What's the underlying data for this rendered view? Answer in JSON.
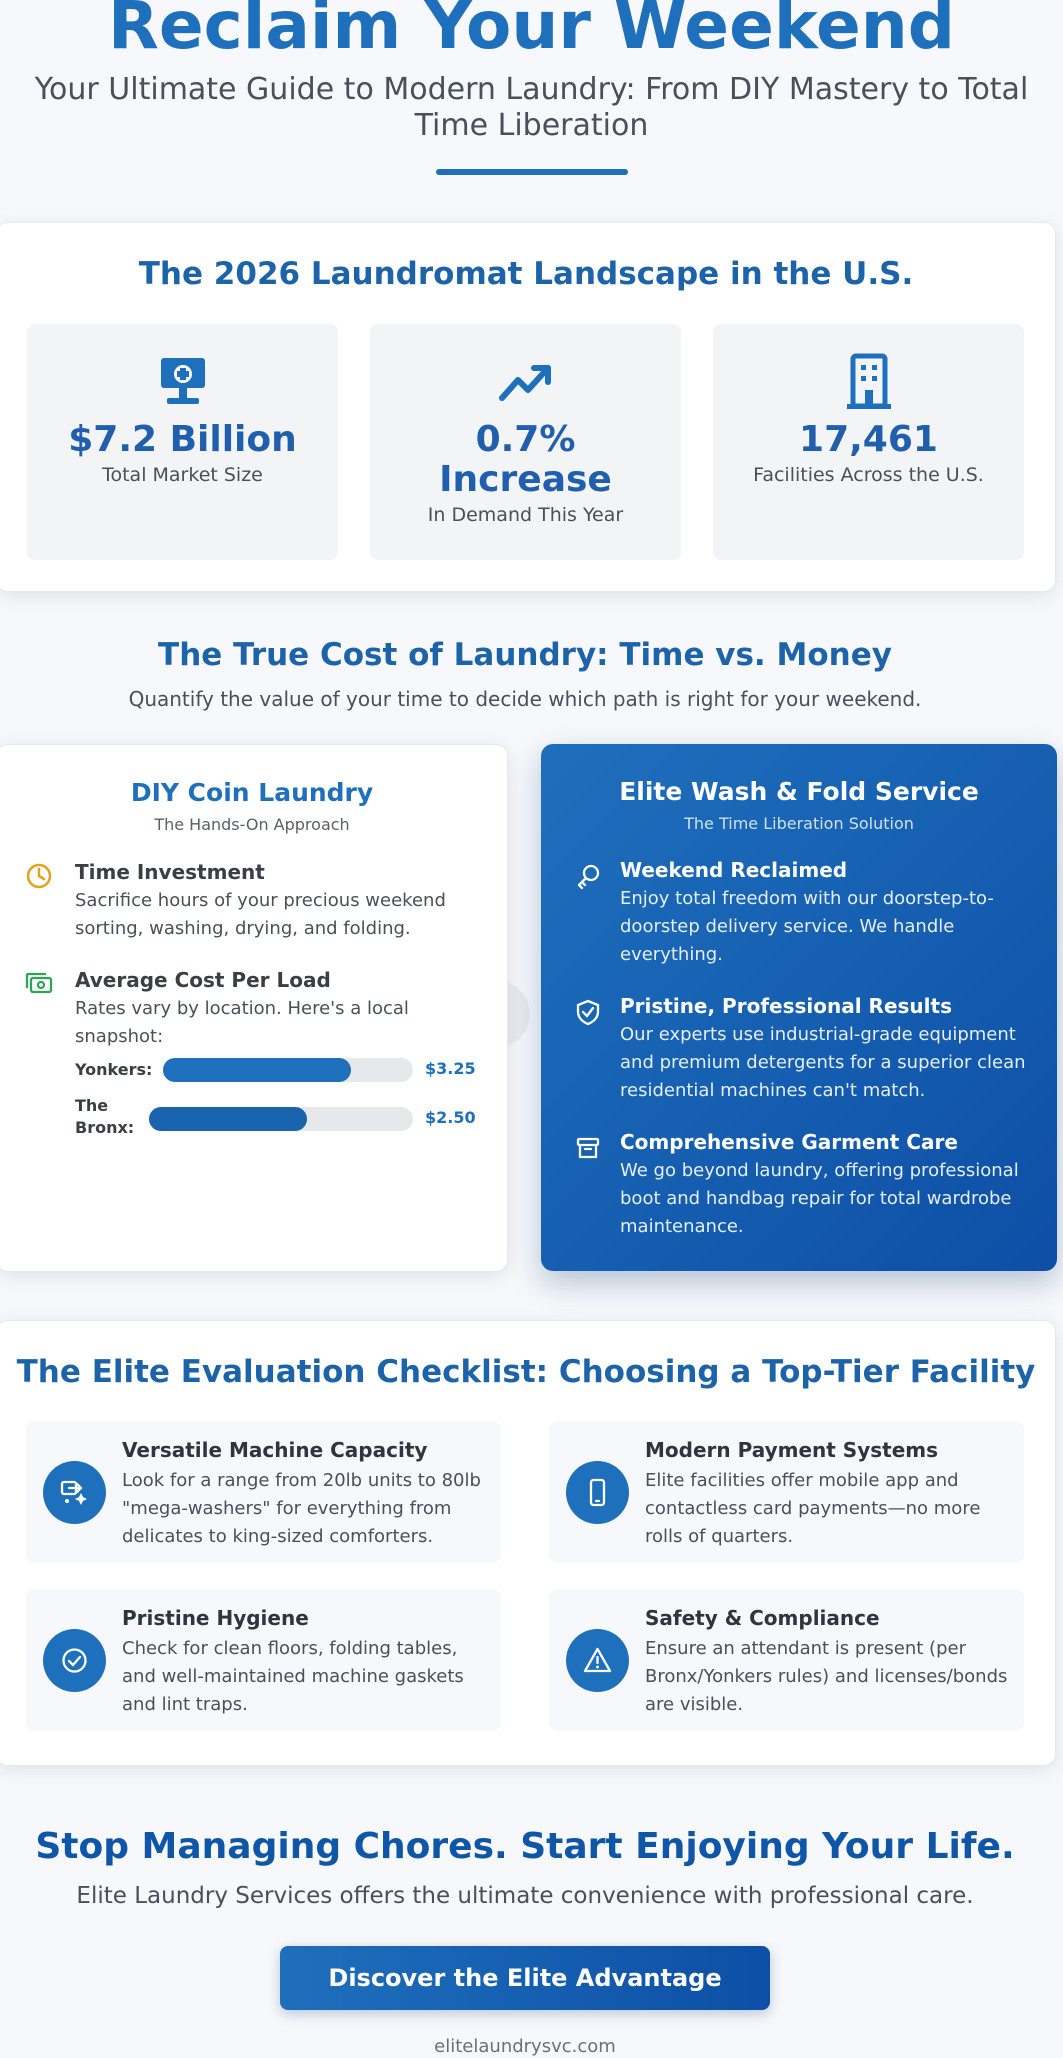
{
  "hero": {
    "title": "Reclaim Your Weekend",
    "subtitle": "Your Ultimate Guide to Modern Laundry: From DIY Mastery to Total Time Liberation"
  },
  "landscape": {
    "title": "The 2026 Laundromat Landscape in the U.S.",
    "stats": [
      {
        "value": "$7.2 Billion",
        "label": "Total Market Size",
        "icon": "market-icon"
      },
      {
        "value": "0.7% Increase",
        "label": "In Demand This Year",
        "icon": "trend-up-icon"
      },
      {
        "value": "17,461",
        "label": "Facilities Across the U.S.",
        "icon": "building-icon"
      }
    ]
  },
  "cost": {
    "title": "The True Cost of Laundry: Time vs. Money",
    "subtitle": "Quantify the value of your time to decide which path is right for your weekend."
  },
  "diy": {
    "title": "DIY Coin Laundry",
    "tagline": "The Hands-On Approach",
    "features": [
      {
        "title": "Time Investment",
        "desc": "Sacrifice hours of your precious weekend sorting, washing, drying, and folding.",
        "icon": "clock-icon",
        "color": "#e3a21a"
      },
      {
        "title": "Average Cost Per Load",
        "desc": "Rates vary by location. Here's a local snapshot:",
        "icon": "cash-icon",
        "color": "#2fa35a"
      }
    ],
    "prices": [
      {
        "label": "Yonkers:",
        "value": "$3.25",
        "fraction": 0.75
      },
      {
        "label": "The Bronx:",
        "value": "$2.50",
        "fraction": 0.6
      }
    ]
  },
  "elite": {
    "title": "Elite Wash & Fold Service",
    "tagline": "The Time Liberation Solution",
    "features": [
      {
        "title": "Weekend Reclaimed",
        "desc": "Enjoy total freedom with our doorstep-to-doorstep delivery service. We handle everything.",
        "icon": "key-icon"
      },
      {
        "title": "Pristine, Professional Results",
        "desc": "Our experts use industrial-grade equipment and premium detergents for a superior clean residential machines can't match.",
        "icon": "shield-check-icon"
      },
      {
        "title": "Comprehensive Garment Care",
        "desc": "We go beyond laundry, offering professional boot and handbag repair for total wardrobe maintenance.",
        "icon": "archive-box-icon"
      }
    ]
  },
  "checklist": {
    "title": "The Elite Evaluation Checklist: Choosing a Top-Tier Facility",
    "items": [
      {
        "title": "Versatile Machine Capacity",
        "desc": "Look for a range from 20lb units to 80lb \"mega-washers\" for everything from delicates to king-sized comforters.",
        "icon": "machine-capacity-icon"
      },
      {
        "title": "Modern Payment Systems",
        "desc": "Elite facilities offer mobile app and contactless card payments—no more rolls of quarters.",
        "icon": "mobile-phone-icon"
      },
      {
        "title": "Pristine Hygiene",
        "desc": "Check for clean floors, folding tables, and well-maintained machine gaskets and lint traps.",
        "icon": "check-circle-icon"
      },
      {
        "title": "Safety & Compliance",
        "desc": "Ensure an attendant is present (per Bronx/Yonkers rules) and licenses/bonds are visible.",
        "icon": "warning-icon"
      }
    ]
  },
  "cta": {
    "title": "Stop Managing Chores. Start Enjoying Your Life.",
    "subtitle": "Elite Laundry Services offers the ultimate convenience with professional care.",
    "button": "Discover the Elite Advantage"
  },
  "footer": {
    "url": "elitelaundrysvc.com"
  },
  "colors": {
    "primary": "#1e6fbc",
    "dark": "#0d4fa6",
    "accent_clock": "#e3a21a",
    "accent_cash": "#2fa35a"
  }
}
